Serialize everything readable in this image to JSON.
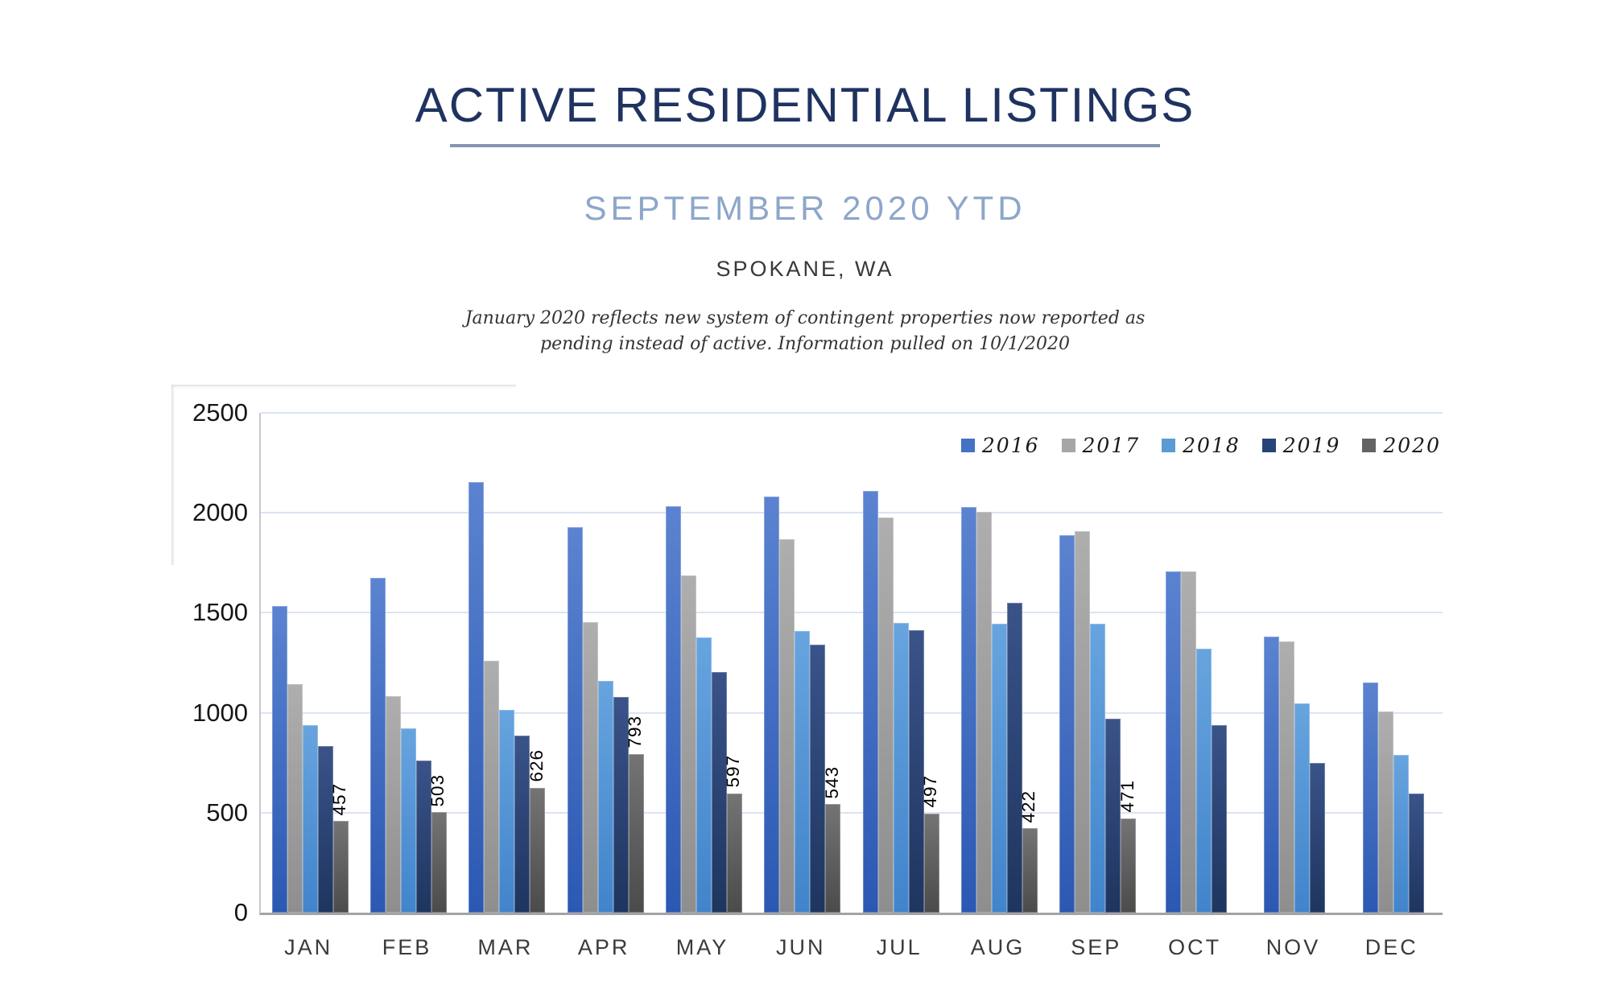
{
  "header": {
    "title": "ACTIVE RESIDENTIAL LISTINGS",
    "subtitle": "SEPTEMBER 2020 YTD",
    "location": "SPOKANE, WA",
    "note_line1": "January 2020 reflects new system of contingent properties now reported as",
    "note_line2": "pending instead of active.  Information pulled on 10/1/2020"
  },
  "chart_data": {
    "type": "bar",
    "title": "Active Residential Listings by month, 2016-2020",
    "categories": [
      "JAN",
      "FEB",
      "MAR",
      "APR",
      "MAY",
      "JUN",
      "JUL",
      "AUG",
      "SEP",
      "OCT",
      "NOV",
      "DEC"
    ],
    "series": [
      {
        "name": "2016",
        "color": "#4472c4",
        "gradient_top": "#5b83d0",
        "gradient_bottom": "#2b58b2",
        "values": [
          1535,
          1675,
          2155,
          1930,
          2035,
          2080,
          2110,
          2030,
          1890,
          1705,
          1380,
          1150
        ]
      },
      {
        "name": "2017",
        "color": "#a6a6a6",
        "gradient_top": "#aeaeae",
        "gradient_bottom": "#8e8e8e",
        "values": [
          1145,
          1085,
          1260,
          1455,
          1685,
          1870,
          1975,
          2005,
          1910,
          1705,
          1355,
          1005
        ]
      },
      {
        "name": "2018",
        "color": "#5b9bd5",
        "gradient_top": "#67a4df",
        "gradient_bottom": "#4184cb",
        "values": [
          940,
          920,
          1015,
          1160,
          1375,
          1410,
          1450,
          1445,
          1445,
          1320,
          1045,
          790
        ]
      },
      {
        "name": "2019",
        "color": "#264478",
        "gradient_top": "#3a5389",
        "gradient_bottom": "#1e355f",
        "values": [
          835,
          760,
          885,
          1080,
          1205,
          1340,
          1415,
          1550,
          970,
          940,
          750,
          595
        ]
      },
      {
        "name": "2020",
        "color": "#636363",
        "gradient_top": "#747474",
        "gradient_bottom": "#4b4b4b",
        "values": [
          457,
          503,
          626,
          793,
          597,
          543,
          497,
          422,
          471,
          null,
          null,
          null
        ],
        "data_labels": true
      }
    ],
    "data_label_values": [
      "457",
      "503",
      "626",
      "793",
      "597",
      "543",
      "497",
      "422",
      "471"
    ],
    "ylim": [
      0,
      2500
    ],
    "yticks": [
      0,
      500,
      1000,
      1500,
      2000,
      2500
    ],
    "ytick_labels": [
      "0",
      "500",
      "1000",
      "1500",
      "2000",
      "2500"
    ],
    "grid": "horizontal",
    "legend_position": "top-right",
    "legend_labels": [
      "2016",
      "2017",
      "2018",
      "2019",
      "2020"
    ]
  }
}
